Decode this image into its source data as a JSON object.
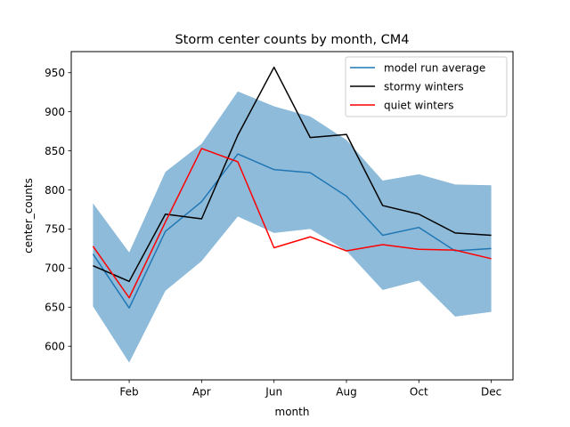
{
  "chart_data": {
    "type": "line",
    "title": "Storm center counts by month, CM4",
    "xlabel": "month",
    "ylabel": "center_counts",
    "x": [
      1,
      2,
      3,
      4,
      5,
      6,
      7,
      8,
      9,
      10,
      11,
      12
    ],
    "xlim": [
      0.4,
      12.6
    ],
    "ylim": [
      557,
      977
    ],
    "x_ticks": [
      {
        "x": 2,
        "label": "Feb"
      },
      {
        "x": 4,
        "label": "Apr"
      },
      {
        "x": 6,
        "label": "Jun"
      },
      {
        "x": 8,
        "label": "Aug"
      },
      {
        "x": 10,
        "label": "Oct"
      },
      {
        "x": 12,
        "label": "Dec"
      }
    ],
    "y_ticks": [
      600,
      650,
      700,
      750,
      800,
      850,
      900,
      950
    ],
    "band": {
      "color": "#8fbbda",
      "lower": [
        651,
        579,
        671,
        709,
        766,
        745,
        750,
        722,
        672,
        684,
        638,
        644
      ],
      "upper": [
        783,
        720,
        823,
        859,
        926,
        907,
        894,
        864,
        812,
        820,
        807,
        806
      ]
    },
    "series": [
      {
        "name": "model run average",
        "color": "#1f77b4",
        "values": [
          718,
          649,
          747,
          785,
          846,
          826,
          822,
          792,
          742,
          752,
          722,
          725
        ]
      },
      {
        "name": "stormy winters",
        "color": "#000000",
        "values": [
          703,
          683,
          769,
          763,
          870,
          957,
          867,
          871,
          780,
          769,
          745,
          742
        ]
      },
      {
        "name": "quiet winters",
        "color": "#ff0000",
        "values": [
          728,
          662,
          759,
          853,
          836,
          726,
          740,
          722,
          730,
          724,
          723,
          712
        ]
      }
    ],
    "legend_position": "top-right",
    "grid": false
  }
}
